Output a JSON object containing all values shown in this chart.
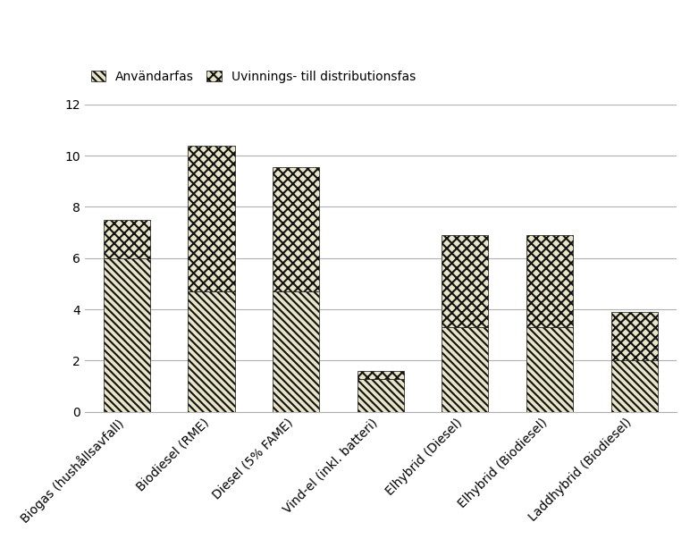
{
  "categories": [
    "Biogas (hushållsavfall)",
    "Biodiesel (RME)",
    "Diesel (5% FAME)",
    "Vind-el (inkl. batteri)",
    "Elhybrid (Diesel)",
    "Elhybrid (Biodiesel)",
    "Laddhybrid (Biodiesel)"
  ],
  "anvandarfas": [
    6.0,
    4.7,
    4.7,
    1.3,
    3.3,
    3.3,
    2.0
  ],
  "uvinnings": [
    1.5,
    5.7,
    4.85,
    0.3,
    3.6,
    3.6,
    1.9
  ],
  "legend1": "Användarfas",
  "legend2": "Uvinnings- till distributionsfas",
  "ylim": [
    0,
    12
  ],
  "yticks": [
    0,
    2,
    4,
    6,
    8,
    10,
    12
  ],
  "bar_facecolor_anv": "#e8e4c8",
  "bar_facecolor_uvin": "#e8e4c8",
  "hatch_anv": "\\\\\\\\",
  "hatch_uvin": "xxx",
  "edgecolor": "#111111",
  "grid_color": "#b0b0b0",
  "label_fontsize": 10,
  "tick_fontsize": 10,
  "bar_width": 0.55
}
